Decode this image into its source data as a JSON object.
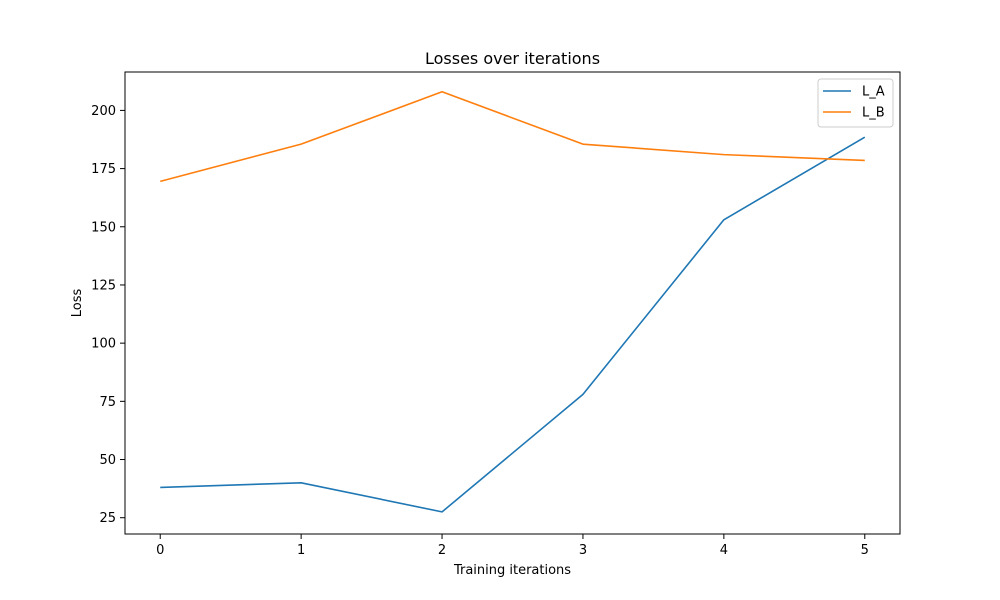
{
  "chart_data": {
    "type": "line",
    "title": "Losses over iterations",
    "xlabel": "Training iterations",
    "ylabel": "Loss",
    "x": [
      0,
      1,
      2,
      3,
      4,
      5
    ],
    "xticks": [
      "0",
      "1",
      "2",
      "3",
      "4",
      "5"
    ],
    "yticks": [
      "25",
      "50",
      "75",
      "100",
      "125",
      "150",
      "175",
      "200"
    ],
    "xlim": [
      -0.25,
      5.25
    ],
    "ylim": [
      18,
      216.5
    ],
    "grid": false,
    "legend_position": "top-right",
    "series": [
      {
        "name": "L_A",
        "color": "#1f77b4",
        "values": [
          38,
          40,
          27.5,
          78,
          153,
          188.5
        ]
      },
      {
        "name": "L_B",
        "color": "#ff7f0e",
        "values": [
          169.5,
          185.5,
          208,
          185.5,
          181,
          178.5
        ]
      }
    ]
  }
}
